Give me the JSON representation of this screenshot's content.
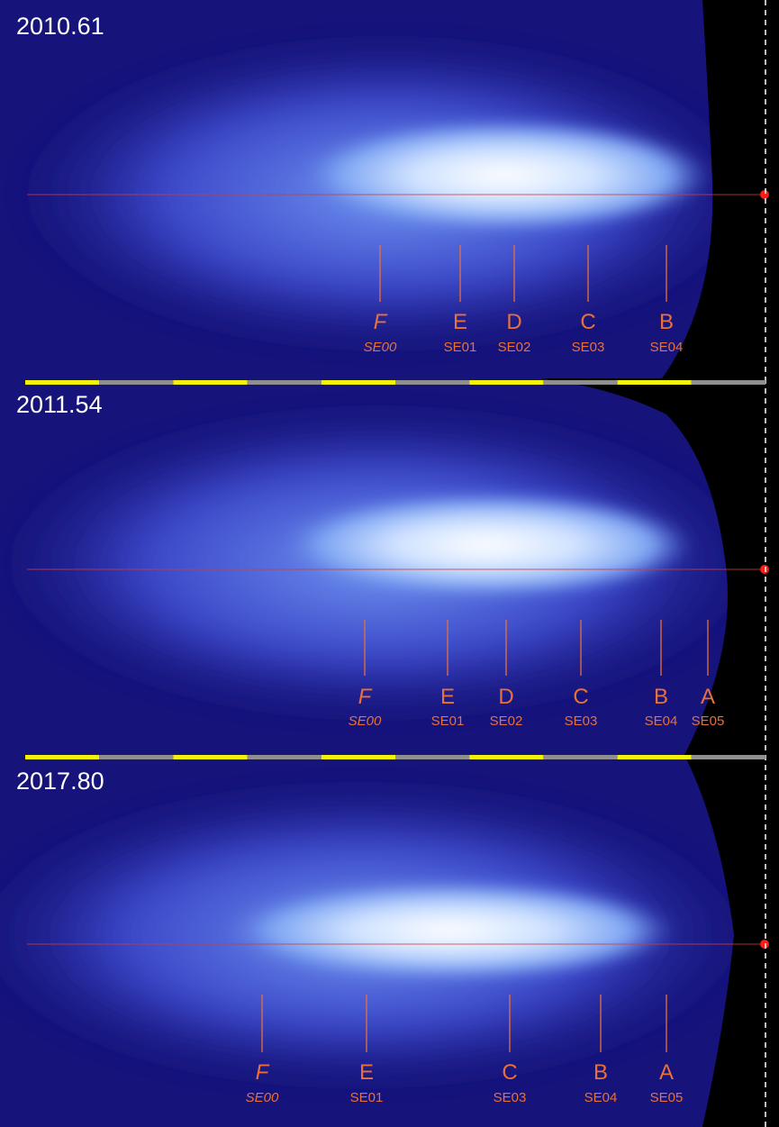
{
  "panels": [
    {
      "epoch": "2010.61",
      "features": [
        {
          "letter": "F",
          "id": "SE00"
        },
        {
          "letter": "E",
          "id": "SE01"
        },
        {
          "letter": "D",
          "id": "SE02"
        },
        {
          "letter": "C",
          "id": "SE03"
        },
        {
          "letter": "B",
          "id": "SE04"
        }
      ]
    },
    {
      "epoch": "2011.54",
      "features": [
        {
          "letter": "F",
          "id": "SE00"
        },
        {
          "letter": "E",
          "id": "SE01"
        },
        {
          "letter": "D",
          "id": "SE02"
        },
        {
          "letter": "C",
          "id": "SE03"
        },
        {
          "letter": "B",
          "id": "SE04"
        },
        {
          "letter": "A",
          "id": "SE05"
        }
      ]
    },
    {
      "epoch": "2017.80",
      "features": [
        {
          "letter": "F",
          "id": "SE00"
        },
        {
          "letter": "E",
          "id": "SE01"
        },
        {
          "letter": "C",
          "id": "SE03"
        },
        {
          "letter": "B",
          "id": "SE04"
        },
        {
          "letter": "A",
          "id": "SE05"
        }
      ]
    }
  ]
}
